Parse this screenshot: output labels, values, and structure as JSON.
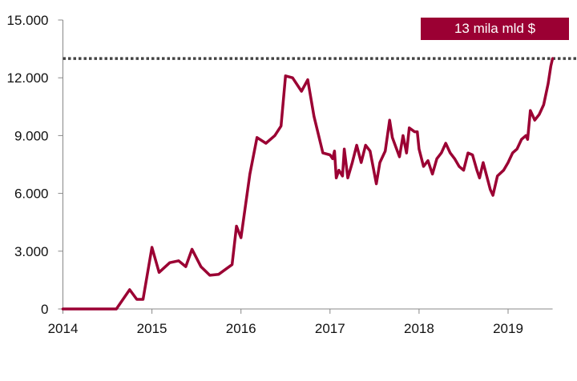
{
  "chart_data": {
    "type": "line",
    "title": "",
    "xlabel": "",
    "ylabel": "",
    "xlim": [
      2014,
      2019.5
    ],
    "ylim": [
      0,
      15000
    ],
    "x_ticks": [
      "2014",
      "2015",
      "2016",
      "2017",
      "2018",
      "2019"
    ],
    "y_ticks": [
      "0",
      "3.000",
      "6.000",
      "9.000",
      "12.000",
      "15.000"
    ],
    "grid": false,
    "line_color": "#9b0033",
    "reference_line": {
      "value": 13000,
      "style": "dotted",
      "color": "#444444"
    },
    "annotation": {
      "text": "13 mila mld $",
      "background": "#9b0033"
    },
    "series": [
      {
        "x": [
          2014.0,
          2014.5,
          2014.6,
          2014.75,
          2014.83,
          2014.9,
          2015.0,
          2015.08,
          2015.2,
          2015.3,
          2015.38,
          2015.45,
          2015.55,
          2015.65,
          2015.75,
          2015.9,
          2015.95,
          2016.0,
          2016.1,
          2016.18,
          2016.28,
          2016.38,
          2016.45,
          2016.5,
          2016.58,
          2016.68,
          2016.75,
          2016.82,
          2016.92,
          2017.0,
          2017.03,
          2017.05,
          2017.07,
          2017.1,
          2017.14,
          2017.16,
          2017.2,
          2017.25,
          2017.3,
          2017.35,
          2017.4,
          2017.45,
          2017.5,
          2017.52,
          2017.56,
          2017.62,
          2017.67,
          2017.7,
          2017.74,
          2017.78,
          2017.82,
          2017.86,
          2017.89,
          2017.95,
          2017.98,
          2018.0,
          2018.05,
          2018.1,
          2018.15,
          2018.2,
          2018.25,
          2018.3,
          2018.35,
          2018.4,
          2018.45,
          2018.5,
          2018.55,
          2018.6,
          2018.65,
          2018.68,
          2018.72,
          2018.8,
          2018.83,
          2018.88,
          2018.95,
          2019.0,
          2019.05,
          2019.1,
          2019.15,
          2019.2,
          2019.22,
          2019.25,
          2019.3,
          2019.35,
          2019.4,
          2019.45,
          2019.48,
          2019.5
        ],
        "y": [
          0,
          0,
          0,
          1000,
          500,
          500,
          3200,
          1900,
          2400,
          2500,
          2200,
          3100,
          2200,
          1750,
          1800,
          2300,
          4300,
          3700,
          7000,
          8900,
          8600,
          9000,
          9500,
          12100,
          12000,
          11300,
          11900,
          10000,
          8100,
          8000,
          7800,
          8200,
          6800,
          7200,
          6900,
          8300,
          6800,
          7600,
          8500,
          7600,
          8500,
          8200,
          7000,
          6500,
          7600,
          8200,
          9800,
          8900,
          8400,
          7900,
          9000,
          8100,
          9400,
          9200,
          9200,
          8300,
          7400,
          7700,
          7000,
          7800,
          8100,
          8600,
          8100,
          7800,
          7400,
          7200,
          8100,
          8000,
          7200,
          6800,
          7600,
          6200,
          5900,
          6900,
          7200,
          7600,
          8100,
          8300,
          8800,
          9000,
          8800,
          10300,
          9800,
          10100,
          10600,
          11700,
          12600,
          13000
        ]
      }
    ]
  }
}
